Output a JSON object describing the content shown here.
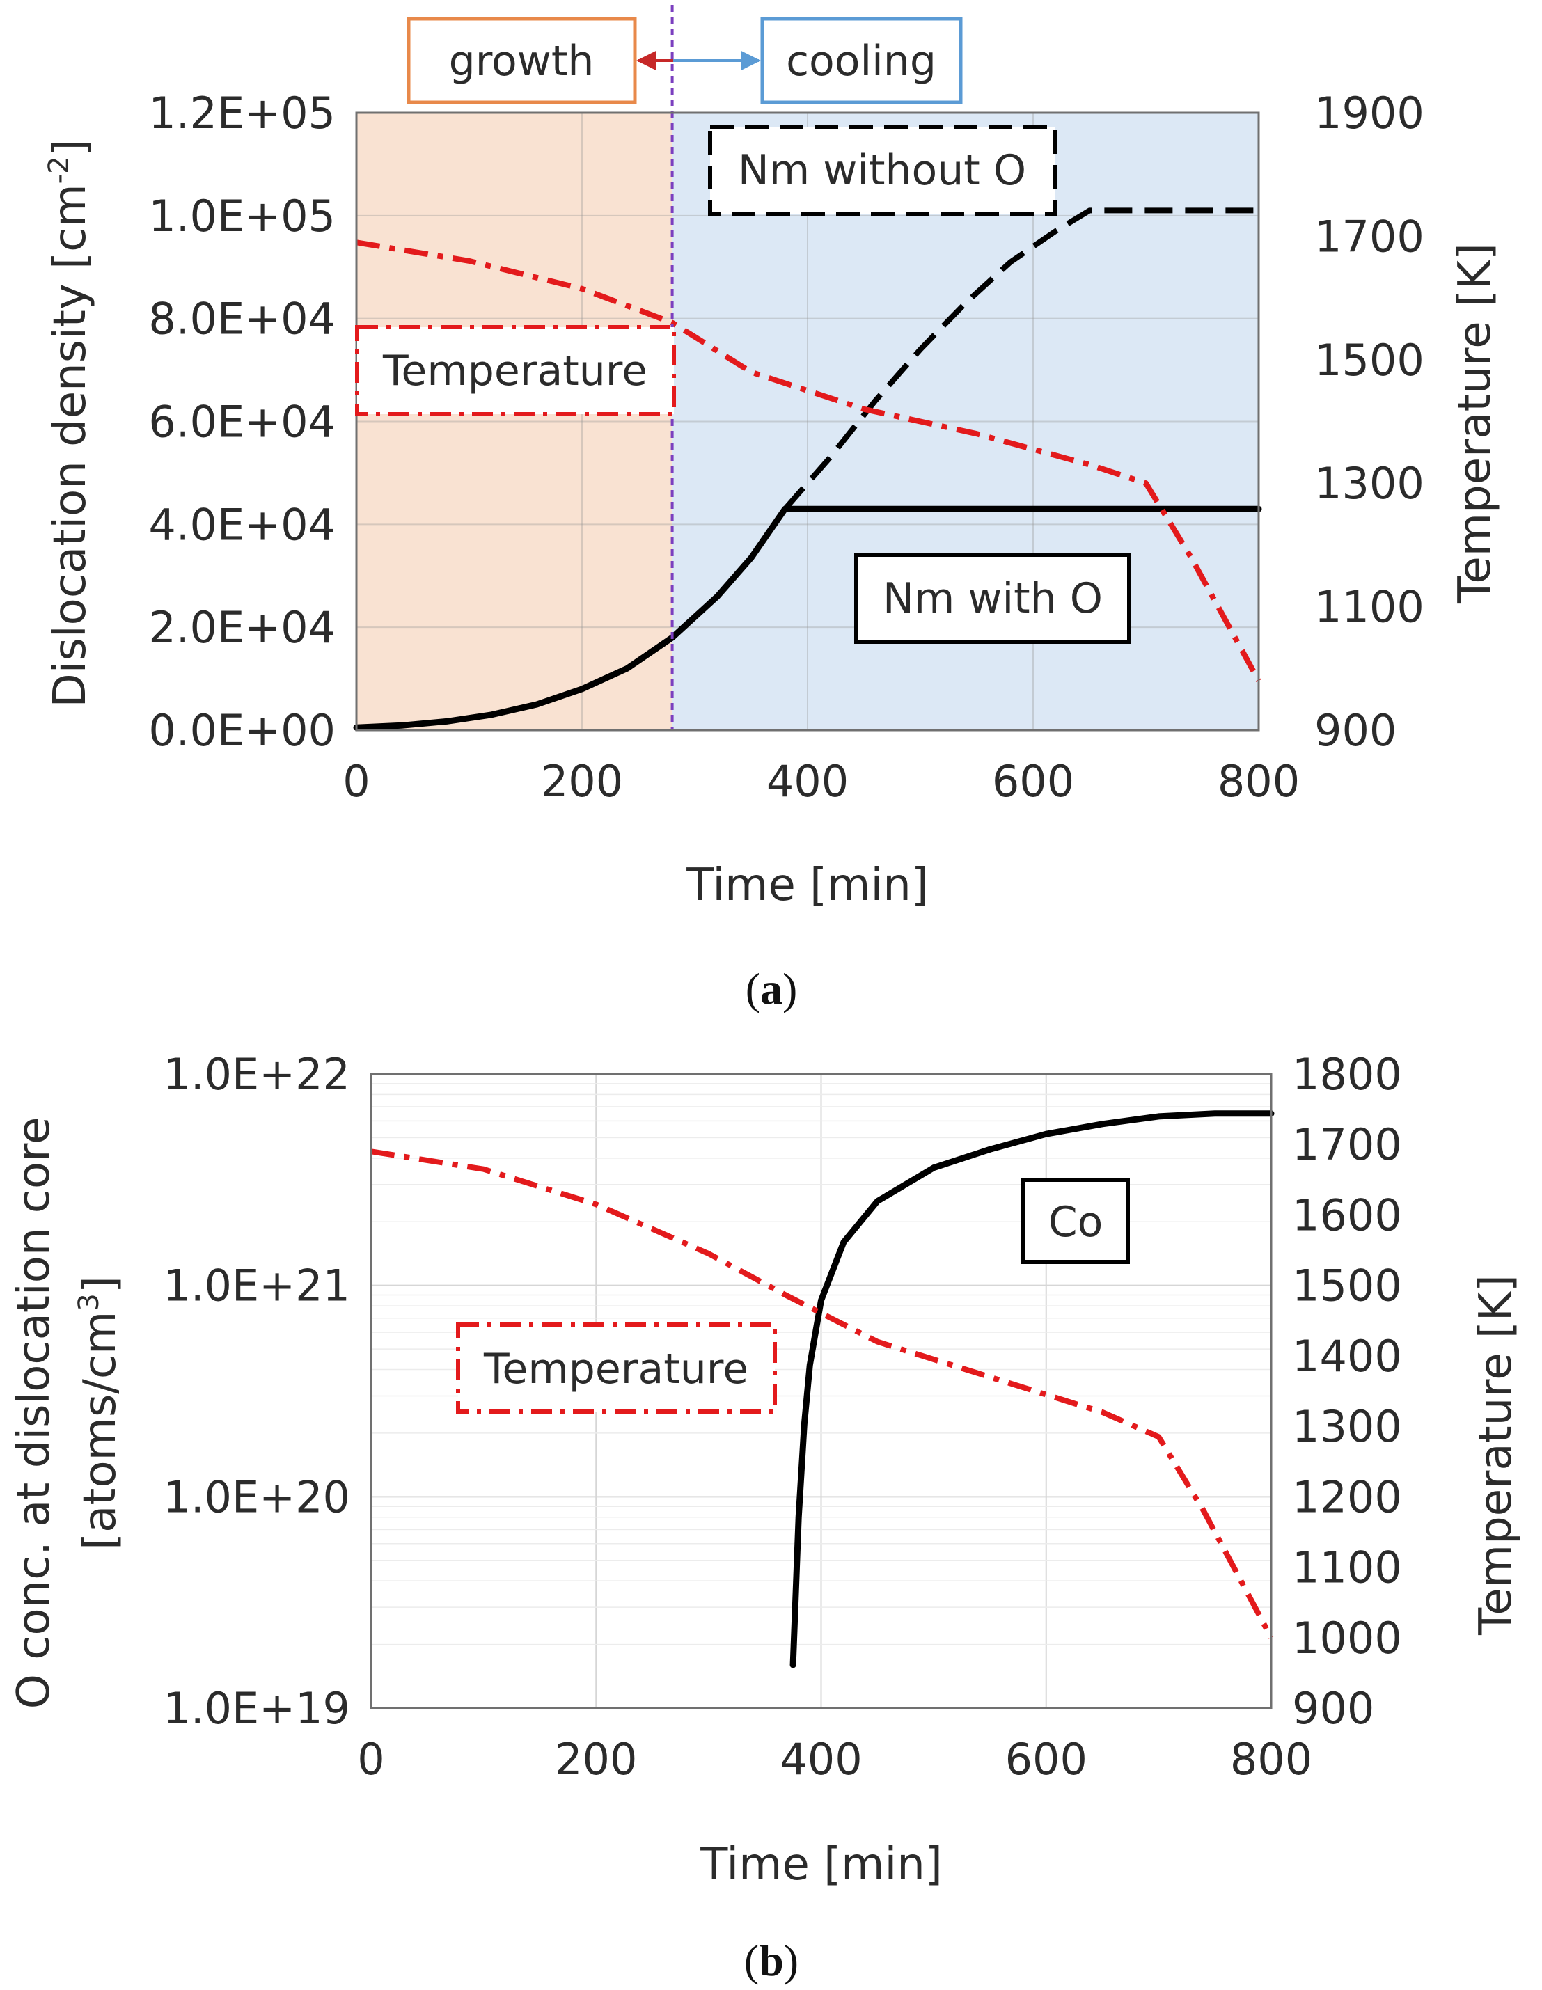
{
  "chart_data": [
    {
      "id": "a",
      "type": "line",
      "caption": "a",
      "xlabel": "Time [min]",
      "ylabel_left": "Dislocation density [cm",
      "ylabel_left_sup": "-2",
      "ylabel_left_end": "]",
      "ylabel_right": "Temperature [K]",
      "xlim": [
        0,
        800
      ],
      "ylim_left": [
        0,
        120000
      ],
      "ylim_right": [
        900,
        1900
      ],
      "xticks": [
        "0",
        "200",
        "400",
        "600",
        "800"
      ],
      "xtick_values": [
        0,
        200,
        400,
        600,
        800
      ],
      "yticks_left": [
        "0.0E+00",
        "2.0E+04",
        "4.0E+04",
        "6.0E+04",
        "8.0E+04",
        "1.0E+05",
        "1.2E+05"
      ],
      "ytick_left_values": [
        0,
        20000,
        40000,
        60000,
        80000,
        100000,
        120000
      ],
      "yticks_right": [
        "900",
        "1100",
        "1300",
        "1500",
        "1700",
        "1900"
      ],
      "ytick_right_values": [
        900,
        1100,
        1300,
        1500,
        1700,
        1900
      ],
      "regions": [
        {
          "name": "growth",
          "label": "growth",
          "x_start": 0,
          "x_end": 280,
          "color": "#f9e2d2",
          "border": "#e8894a",
          "arrow_color": "#c62828"
        },
        {
          "name": "cooling",
          "label": "cooling",
          "x_start": 280,
          "x_end": 800,
          "color": "#dce8f5",
          "border": "#5b9bd5",
          "arrow_color": "#5b9bd5"
        }
      ],
      "divider_x": 280,
      "divider_color": "#7b3fbf",
      "series": [
        {
          "name": "Nm with O",
          "label": "Nm with O",
          "axis": "left",
          "style": "solid",
          "color": "#000000",
          "x": [
            0,
            40,
            80,
            120,
            160,
            200,
            240,
            280,
            320,
            350,
            380,
            450,
            550,
            650,
            750,
            800
          ],
          "y": [
            500,
            900,
            1700,
            3000,
            5000,
            8000,
            12000,
            18000,
            26000,
            33500,
            43000,
            43000,
            43000,
            43000,
            43000,
            43000
          ]
        },
        {
          "name": "Nm without O",
          "label": "Nm without O",
          "axis": "left",
          "style": "dashed",
          "color": "#000000",
          "x": [
            380,
            420,
            460,
            500,
            540,
            580,
            620,
            650,
            700,
            750,
            800
          ],
          "y": [
            43000,
            53000,
            64000,
            74000,
            83000,
            91000,
            97000,
            101000,
            101000,
            101000,
            101000
          ]
        },
        {
          "name": "Temperature",
          "label": "Temperature",
          "axis": "right",
          "style": "dashdot",
          "color": "#e31a1c",
          "x": [
            0,
            100,
            200,
            280,
            350,
            450,
            550,
            650,
            700,
            740,
            770,
            800
          ],
          "y": [
            1690,
            1660,
            1615,
            1560,
            1480,
            1420,
            1380,
            1330,
            1300,
            1180,
            1080,
            980
          ]
        }
      ]
    },
    {
      "id": "b",
      "type": "line",
      "caption": "b",
      "xlabel": "Time [min]",
      "ylabel_left_line1": "O conc. at dislocation core",
      "ylabel_left_line2": "[atoms/cm",
      "ylabel_left_sup": "3",
      "ylabel_left_end": "]",
      "ylabel_right": "Temperature [K]",
      "xlim": [
        0,
        800
      ],
      "yscale_left": "log",
      "ylim_left": [
        1e+19,
        1e+22
      ],
      "ylim_right": [
        900,
        1800
      ],
      "xticks": [
        "0",
        "200",
        "400",
        "600",
        "800"
      ],
      "xtick_values": [
        0,
        200,
        400,
        600,
        800
      ],
      "yticks_left": [
        "1.0E+19",
        "1.0E+20",
        "1.0E+21",
        "1.0E+22"
      ],
      "ytick_left_exponents": [
        19,
        20,
        21,
        22
      ],
      "yticks_right": [
        "900",
        "1000",
        "1100",
        "1200",
        "1300",
        "1400",
        "1500",
        "1600",
        "1700",
        "1800"
      ],
      "ytick_right_values": [
        900,
        1000,
        1100,
        1200,
        1300,
        1400,
        1500,
        1600,
        1700,
        1800
      ],
      "grid": true,
      "series": [
        {
          "name": "Co",
          "label": "Co",
          "axis": "left",
          "style": "solid",
          "color": "#000000",
          "x": [
            375,
            377,
            380,
            385,
            390,
            400,
            420,
            450,
            500,
            550,
            600,
            650,
            700,
            750,
            800
          ],
          "y": [
            1.6e+19,
            3e+19,
            8e+19,
            2.2e+20,
            4.2e+20,
            8.5e+20,
            1.6e+21,
            2.5e+21,
            3.6e+21,
            4.4e+21,
            5.2e+21,
            5.8e+21,
            6.3e+21,
            6.5e+21,
            6.5e+21
          ]
        },
        {
          "name": "Temperature",
          "label": "Temperature",
          "axis": "right",
          "style": "dashdot",
          "color": "#e31a1c",
          "x": [
            0,
            100,
            200,
            300,
            370,
            450,
            550,
            650,
            700,
            740,
            780,
            800
          ],
          "y": [
            1690,
            1665,
            1615,
            1545,
            1485,
            1420,
            1370,
            1320,
            1285,
            1180,
            1060,
            1000
          ]
        }
      ]
    }
  ]
}
